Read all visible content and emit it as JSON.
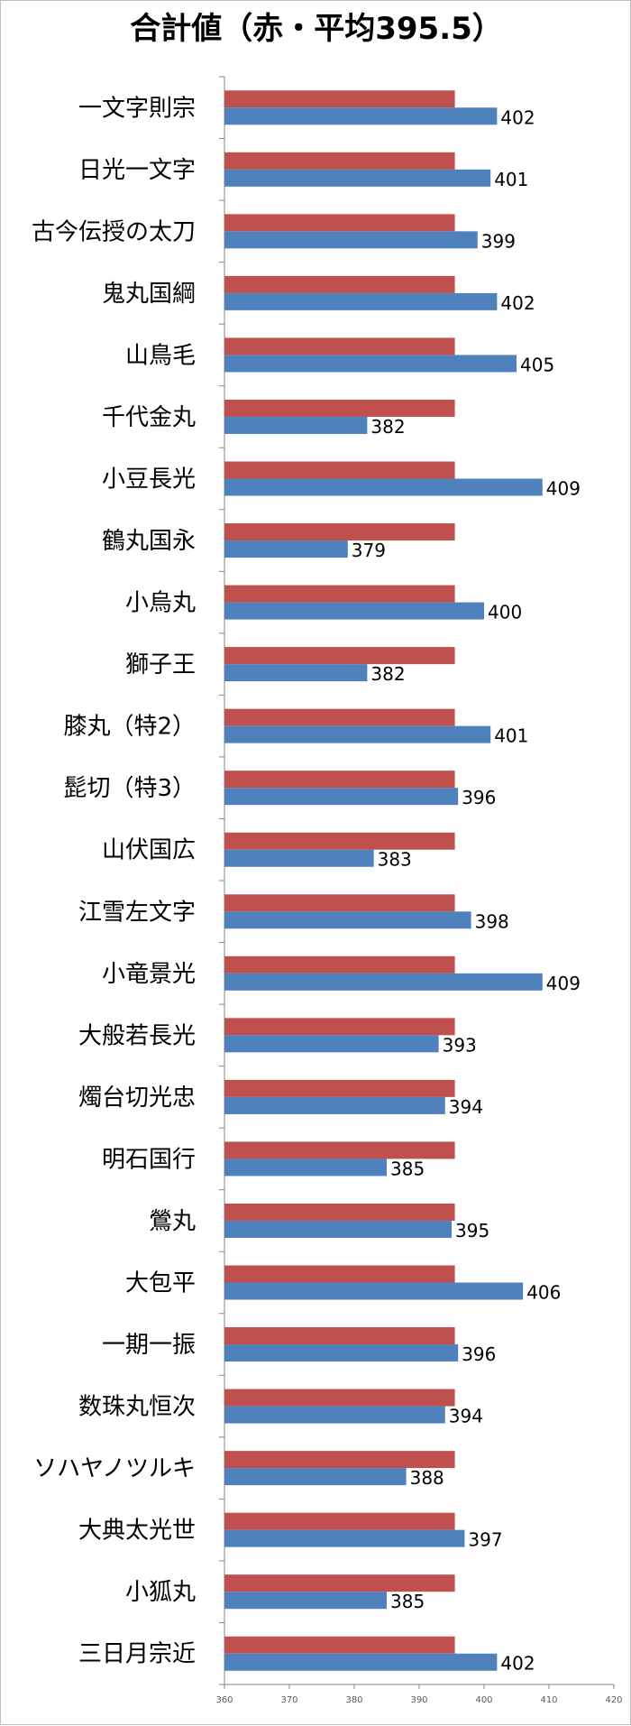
{
  "chart_data": {
    "type": "bar",
    "orientation": "horizontal",
    "title": "合計値（赤・平均395.5）",
    "categories": [
      "一文字則宗",
      "日光一文字",
      "古今伝授の太刀",
      "鬼丸国綱",
      "山鳥毛",
      "千代金丸",
      "小豆長光",
      "鶴丸国永",
      "小烏丸",
      "獅子王",
      "膝丸（特2）",
      "髭切（特3）",
      "山伏国広",
      "江雪左文字",
      "小竜景光",
      "大般若長光",
      "燭台切光忠",
      "明石国行",
      "鶯丸",
      "大包平",
      "一期一振",
      "数珠丸恒次",
      "ソハヤノツルキ",
      "大典太光世",
      "小狐丸",
      "三日月宗近"
    ],
    "series": [
      {
        "color": "#c0504d",
        "values": [
          395.5,
          395.5,
          395.5,
          395.5,
          395.5,
          395.5,
          395.5,
          395.5,
          395.5,
          395.5,
          395.5,
          395.5,
          395.5,
          395.5,
          395.5,
          395.5,
          395.5,
          395.5,
          395.5,
          395.5,
          395.5,
          395.5,
          395.5,
          395.5,
          395.5,
          395.5
        ]
      },
      {
        "color": "#4f81bd",
        "values": [
          402,
          401,
          399,
          402,
          405,
          382,
          409,
          379,
          400,
          382,
          401,
          396,
          383,
          398,
          409,
          393,
          394,
          385,
          395,
          406,
          396,
          394,
          388,
          397,
          385,
          402
        ]
      }
    ],
    "xlim": [
      360,
      420
    ],
    "ticks": [
      360,
      370,
      380,
      390,
      400,
      410,
      420
    ],
    "data_labels": "blue series only",
    "grid": false,
    "legend": "none"
  }
}
